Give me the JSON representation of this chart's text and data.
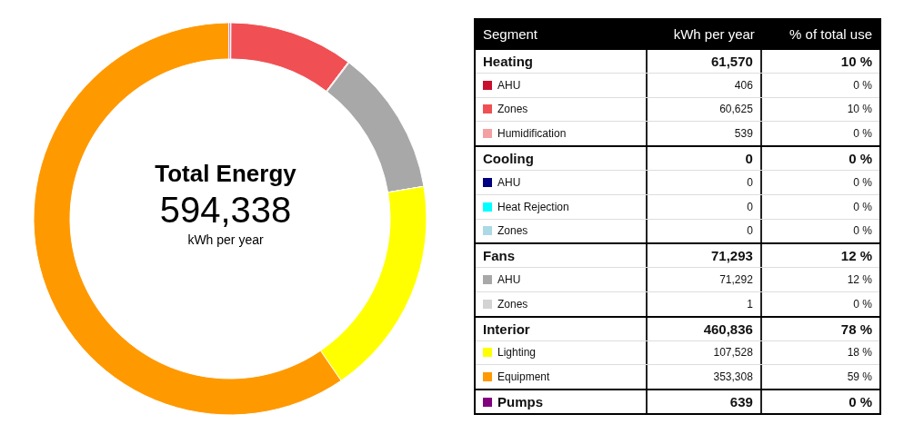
{
  "chart_data": {
    "type": "donut",
    "title": "Total Energy",
    "subtitle": "594,338",
    "annotations": [
      "kWh per year",
      "Segment",
      "kWh per year",
      "% of total use",
      "10 %",
      "0 %",
      "10 %",
      "0 %",
      "0 %",
      "0 %",
      "0 %",
      "0 %",
      "12 %",
      "12 %",
      "0 %",
      "78 %",
      "18 %",
      "59 %",
      "0 %"
    ],
    "categories": [
      "Heating",
      "AHU",
      "Zones",
      "Humidification",
      "Cooling",
      "AHU",
      "Heat Rejection",
      "Zones",
      "Fans",
      "AHU",
      "Zones",
      "Interior",
      "Lighting",
      "Equipment",
      "Pumps"
    ],
    "values": [
      null,
      406,
      60625,
      539,
      null,
      0,
      0,
      0,
      null,
      71292,
      1,
      null,
      107528,
      353308,
      639
    ],
    "colors": [
      null,
      "#c8102e",
      "#f05053",
      "#f4a0a3",
      null,
      "#000080",
      "#00ffff",
      "#add8e6",
      null,
      "#a8a8a8",
      "#d3d3d3",
      null,
      "#ffff00",
      "#ff9900",
      "#800080"
    ],
    "totals": [
      "61,570",
      null,
      null,
      null,
      "0",
      null,
      null,
      null,
      "71,293",
      null,
      null,
      "460,836",
      null,
      null,
      null
    ],
    "value_labels": [
      null,
      "406",
      "60,625",
      "539",
      null,
      "0",
      "0",
      "0",
      null,
      "71,292",
      "1",
      null,
      "107,528",
      "353,308",
      "639"
    ],
    "legend": "right"
  }
}
